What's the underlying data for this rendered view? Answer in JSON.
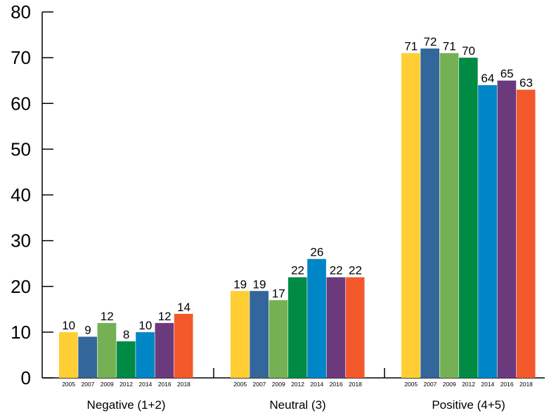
{
  "chart_data": {
    "type": "bar",
    "title": "",
    "xlabel": "",
    "ylabel": "",
    "ylim": [
      0,
      80
    ],
    "yticks": [
      0,
      10,
      20,
      30,
      40,
      50,
      60,
      70,
      80
    ],
    "grid": false,
    "legend": "none",
    "categories": [
      "Negative (1+2)",
      "Neutral (3)",
      "Positive (4+5)"
    ],
    "series": [
      {
        "name": "2005",
        "color": "#FFCD34",
        "values": [
          10,
          19,
          71
        ]
      },
      {
        "name": "2007",
        "color": "#33669A",
        "values": [
          9,
          19,
          72
        ]
      },
      {
        "name": "2009",
        "color": "#74B154",
        "values": [
          12,
          17,
          71
        ]
      },
      {
        "name": "2012",
        "color": "#008B45",
        "values": [
          8,
          22,
          70
        ]
      },
      {
        "name": "2014",
        "color": "#0086C6",
        "values": [
          10,
          26,
          64
        ]
      },
      {
        "name": "2016",
        "color": "#6B3A7C",
        "values": [
          12,
          22,
          65
        ]
      },
      {
        "name": "2018",
        "color": "#F4592B",
        "values": [
          14,
          22,
          63
        ]
      }
    ]
  }
}
